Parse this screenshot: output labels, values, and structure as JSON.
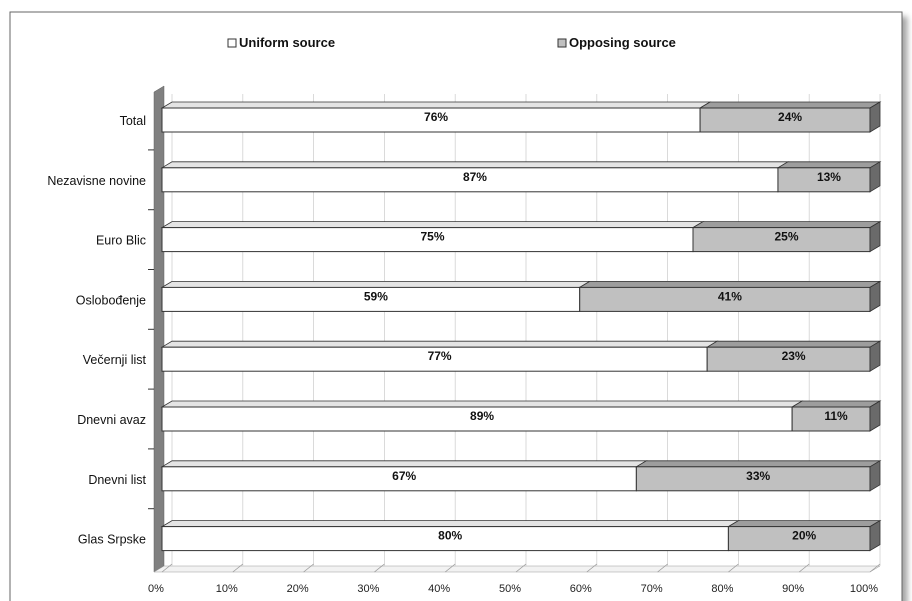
{
  "chart_data": {
    "type": "bar",
    "stacked": true,
    "percent": true,
    "orientation": "horizontal",
    "three_d": true,
    "categories": [
      "Total",
      "Nezavisne novine",
      "Euro Blic",
      "Oslobođenje",
      "Večernji list",
      "Dnevni avaz",
      "Dnevni list",
      "Glas Srpske"
    ],
    "series": [
      {
        "name": "Uniform source",
        "values": [
          76,
          87,
          75,
          59,
          77,
          89,
          67,
          80
        ],
        "color": "#ffffff"
      },
      {
        "name": "Opposing source",
        "values": [
          24,
          13,
          25,
          41,
          23,
          11,
          33,
          20
        ],
        "color": "#c0c0c0"
      }
    ],
    "xlim": [
      0,
      100
    ],
    "x_ticks": [
      "0%",
      "10%",
      "20%",
      "30%",
      "40%",
      "50%",
      "60%",
      "70%",
      "80%",
      "90%",
      "100%"
    ],
    "legend_position": "top",
    "grid": true,
    "data_label_suffix": "%"
  }
}
